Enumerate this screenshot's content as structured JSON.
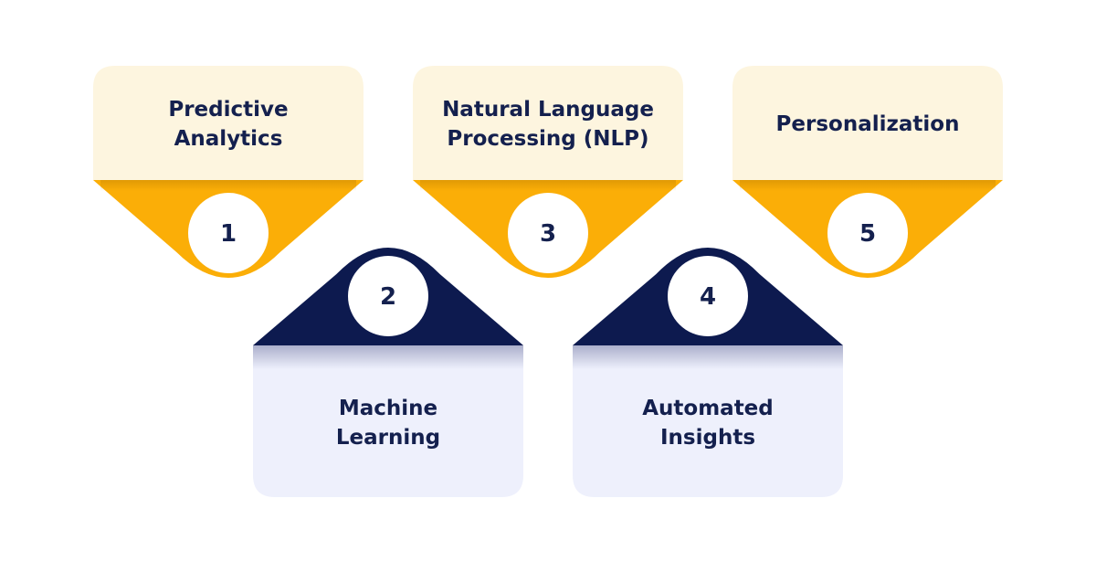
{
  "colors": {
    "background": "#ffffff",
    "top_card": "#fdf5df",
    "top_accent": "#fbae07",
    "bottom_card": "#eef0fc",
    "bottom_accent": "#0d1a4f",
    "text": "#14204e",
    "circle": "#ffffff"
  },
  "steps": [
    {
      "number": "1",
      "label_lines": [
        "Predictive",
        "Analytics"
      ],
      "position": "top"
    },
    {
      "number": "2",
      "label_lines": [
        "Machine",
        "Learning"
      ],
      "position": "bottom"
    },
    {
      "number": "3",
      "label_lines": [
        "Natural Language",
        "Processing (NLP)"
      ],
      "position": "top"
    },
    {
      "number": "4",
      "label_lines": [
        "Automated",
        "Insights"
      ],
      "position": "bottom"
    },
    {
      "number": "5",
      "label_lines": [
        "Personalization"
      ],
      "position": "top"
    }
  ]
}
